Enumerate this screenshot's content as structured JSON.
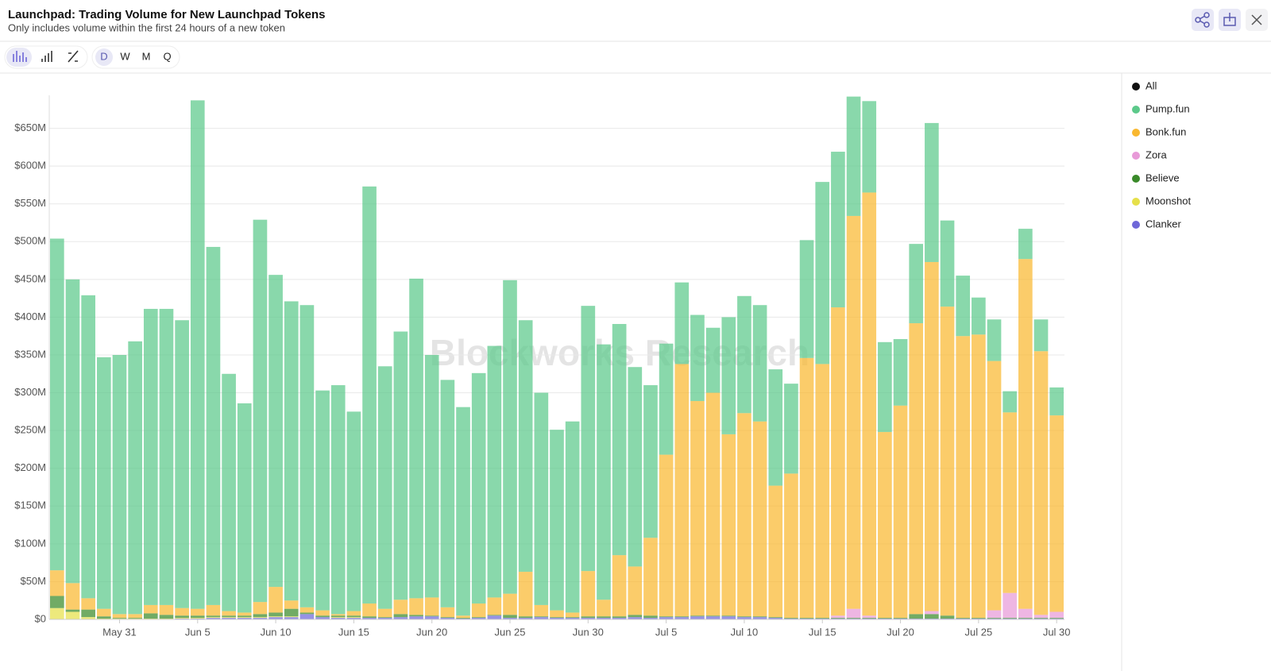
{
  "chart_data": {
    "type": "stacked_bar",
    "title": "Launchpad: Trading Volume for New Launchpad Tokens",
    "subtitle": "Only includes volume within the first 24 hours of a new token",
    "watermark": "Blockworks Research",
    "legend_all": {
      "name": "All",
      "color": "#111111"
    },
    "categories": [
      null,
      null,
      null,
      null,
      "May 31",
      null,
      null,
      null,
      null,
      "Jun 5",
      null,
      null,
      null,
      null,
      "Jun 10",
      null,
      null,
      null,
      null,
      "Jun 15",
      null,
      null,
      null,
      null,
      "Jun 20",
      null,
      null,
      null,
      null,
      "Jun 25",
      null,
      null,
      null,
      null,
      "Jun 30",
      null,
      null,
      null,
      null,
      "Jul 5",
      null,
      null,
      null,
      null,
      "Jul 10",
      null,
      null,
      null,
      null,
      "Jul 15",
      null,
      null,
      null,
      null,
      "Jul 20",
      null,
      null,
      null,
      null,
      "Jul 25",
      null,
      null,
      null,
      null,
      "Jul 30"
    ],
    "series": [
      {
        "name": "Pump.fun",
        "color": "#5cc98a",
        "values": [
          439,
          402,
          401,
          333,
          343,
          361,
          392,
          392,
          381,
          673,
          474,
          314,
          277,
          506,
          413,
          396,
          400,
          291,
          303,
          264,
          552,
          321,
          355,
          423,
          321,
          301,
          276,
          305,
          333,
          415,
          333,
          281,
          239,
          253,
          351,
          338,
          306,
          264,
          202,
          147,
          108,
          114,
          86,
          155,
          155,
          154,
          154,
          119,
          156,
          241,
          206,
          158,
          121,
          119,
          88,
          105,
          184,
          114,
          80,
          49,
          55,
          28,
          40,
          42,
          37
        ]
      },
      {
        "name": "Bonk.fun",
        "color": "#f9b830",
        "values": [
          34,
          35,
          15,
          10,
          5,
          5,
          11,
          13,
          10,
          9,
          14,
          6,
          4,
          16,
          34,
          11,
          7,
          7,
          2,
          6,
          17,
          11,
          19,
          22,
          24,
          13,
          3,
          18,
          23,
          28,
          59,
          15,
          9,
          6,
          60,
          22,
          81,
          64,
          103,
          214,
          334,
          284,
          295,
          240,
          269,
          258,
          174,
          191,
          344,
          336,
          408,
          520,
          560,
          246,
          281,
          385,
          462,
          409,
          373,
          375,
          330,
          239,
          463,
          349,
          260
        ]
      },
      {
        "name": "Zora",
        "color": "#e89ad8",
        "values": [
          0,
          0,
          0,
          0,
          0,
          0,
          0,
          0,
          0,
          0,
          0,
          0,
          0,
          0,
          0,
          0,
          0,
          0,
          0,
          0,
          0,
          0,
          0,
          0,
          0,
          0,
          0,
          0,
          0,
          0,
          0,
          0,
          0,
          0,
          0,
          0,
          0,
          0,
          0,
          0,
          0,
          0,
          0,
          0,
          0,
          0,
          0,
          0,
          0,
          0,
          3,
          12,
          3,
          0,
          0,
          0,
          4,
          0,
          0,
          0,
          10,
          33,
          12,
          4,
          8
        ]
      },
      {
        "name": "Believe",
        "color": "#3a8a2a",
        "values": [
          16,
          3,
          10,
          3,
          1,
          1,
          7,
          5,
          3,
          3,
          2,
          2,
          2,
          4,
          5,
          10,
          2,
          2,
          2,
          2,
          2,
          1,
          4,
          2,
          1,
          1,
          1,
          1,
          1,
          4,
          2,
          1,
          1,
          1,
          2,
          2,
          2,
          3,
          3,
          1,
          1,
          1,
          1,
          1,
          1,
          1,
          1,
          1,
          1,
          1,
          1,
          1,
          1,
          1,
          1,
          6,
          6,
          4,
          1,
          1,
          1,
          1,
          1,
          1,
          1
        ]
      },
      {
        "name": "Moonshot",
        "color": "#e6e04a",
        "values": [
          15,
          10,
          3,
          1,
          1,
          1,
          1,
          1,
          1,
          1,
          1,
          1,
          1,
          1,
          1,
          1,
          0,
          0,
          1,
          1,
          0,
          0,
          0,
          0,
          0,
          0,
          0,
          0,
          0,
          0,
          0,
          0,
          0,
          0,
          0,
          0,
          0,
          0,
          0,
          0,
          0,
          0,
          0,
          0,
          0,
          0,
          0,
          0,
          0,
          0,
          0,
          0,
          0,
          0,
          0,
          0,
          0,
          0,
          0,
          0,
          0,
          0,
          0,
          0,
          0
        ]
      },
      {
        "name": "Clanker",
        "color": "#6f68d8",
        "values": [
          0,
          0,
          0,
          0,
          0,
          0,
          0,
          0,
          1,
          1,
          2,
          2,
          2,
          2,
          3,
          3,
          7,
          3,
          2,
          2,
          2,
          2,
          3,
          4,
          4,
          2,
          1,
          2,
          5,
          2,
          2,
          3,
          2,
          2,
          2,
          2,
          2,
          3,
          2,
          3,
          3,
          4,
          4,
          4,
          3,
          3,
          2,
          1,
          1,
          1,
          1,
          1,
          1,
          1,
          1,
          1,
          1,
          1,
          1,
          1,
          1,
          1,
          1,
          1,
          1
        ]
      }
    ],
    "ylim": [
      0,
      700
    ],
    "yticks": [
      {
        "value": 0,
        "label": "$0"
      },
      {
        "value": 50,
        "label": "$50M"
      },
      {
        "value": 100,
        "label": "$100M"
      },
      {
        "value": 150,
        "label": "$150M"
      },
      {
        "value": 200,
        "label": "$200M"
      },
      {
        "value": 250,
        "label": "$250M"
      },
      {
        "value": 300,
        "label": "$300M"
      },
      {
        "value": 350,
        "label": "$350M"
      },
      {
        "value": 400,
        "label": "$400M"
      },
      {
        "value": 450,
        "label": "$450M"
      },
      {
        "value": 500,
        "label": "$500M"
      },
      {
        "value": 550,
        "label": "$550M"
      },
      {
        "value": 600,
        "label": "$600M"
      },
      {
        "value": 650,
        "label": "$650M"
      }
    ],
    "grid": true
  },
  "toolbar": {
    "periods": [
      "D",
      "W",
      "M",
      "Q"
    ]
  }
}
